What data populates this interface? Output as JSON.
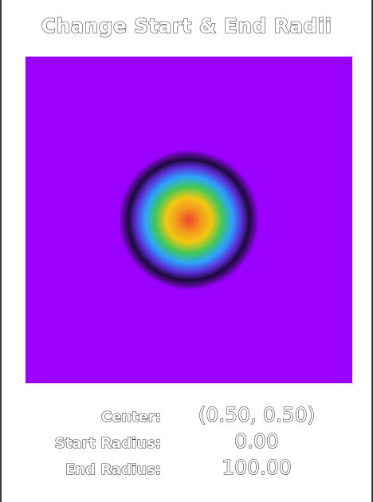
{
  "title": "Change Start & End Radii",
  "gradient": {
    "background_color": "#9b00ff",
    "stops": [
      {
        "offset": 0.0,
        "color": "#f0442f"
      },
      {
        "offset": 0.18,
        "color": "#f39a1c"
      },
      {
        "offset": 0.32,
        "color": "#f2c80f"
      },
      {
        "offset": 0.48,
        "color": "#3fc85a"
      },
      {
        "offset": 0.62,
        "color": "#2da2ff"
      },
      {
        "offset": 0.76,
        "color": "#5a2cd6"
      },
      {
        "offset": 0.86,
        "color": "#1d0a3a"
      },
      {
        "offset": 0.94,
        "color": "#5a0a9a"
      },
      {
        "offset": 1.0,
        "color": "#9b00ff"
      }
    ]
  },
  "parameters": {
    "center_label": "Center:",
    "center_value": "(0.50, 0.50)",
    "start_radius_label": "Start Radius:",
    "start_radius_value": "0.00",
    "end_radius_label": "End Radius:",
    "end_radius_value": "100.00"
  }
}
